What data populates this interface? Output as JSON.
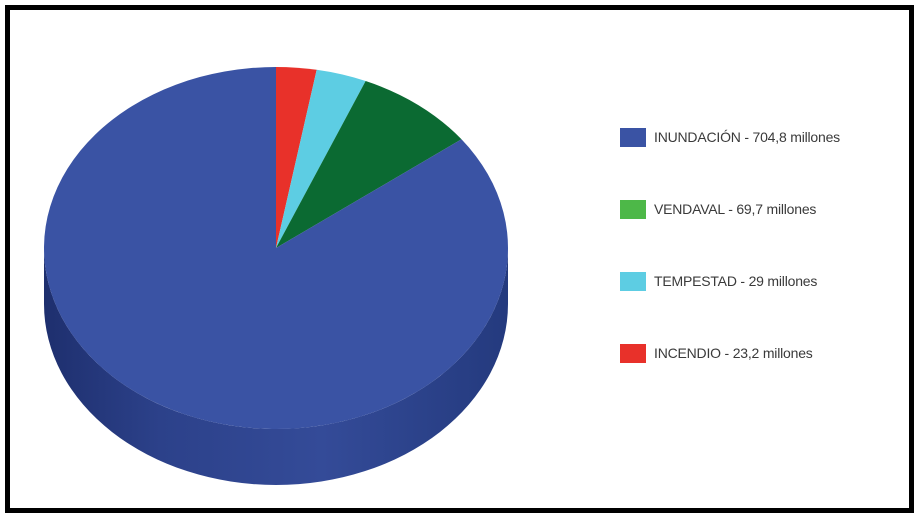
{
  "chart_data": {
    "type": "pie",
    "title": "",
    "categories": [
      "INUNDACIÓN",
      "VENDAVAL",
      "TEMPESTAD",
      "INCENDIO"
    ],
    "values": [
      704.8,
      69.7,
      29,
      23.2
    ],
    "unit": "millones",
    "legend_labels": [
      "INUNDACIÓN - 704,8 millones",
      "VENDAVAL - 69,7 millones",
      "TEMPESTAD - 29 millones",
      "INCENDIO - 23,2 millones"
    ],
    "colors": [
      "#3a53a4",
      "#4db848",
      "#5dcde3",
      "#e8312a"
    ],
    "slice_colors": [
      "#3a53a4",
      "#0b6a32",
      "#5dcde3",
      "#e8312a"
    ],
    "legend": "right",
    "style": "3d"
  }
}
